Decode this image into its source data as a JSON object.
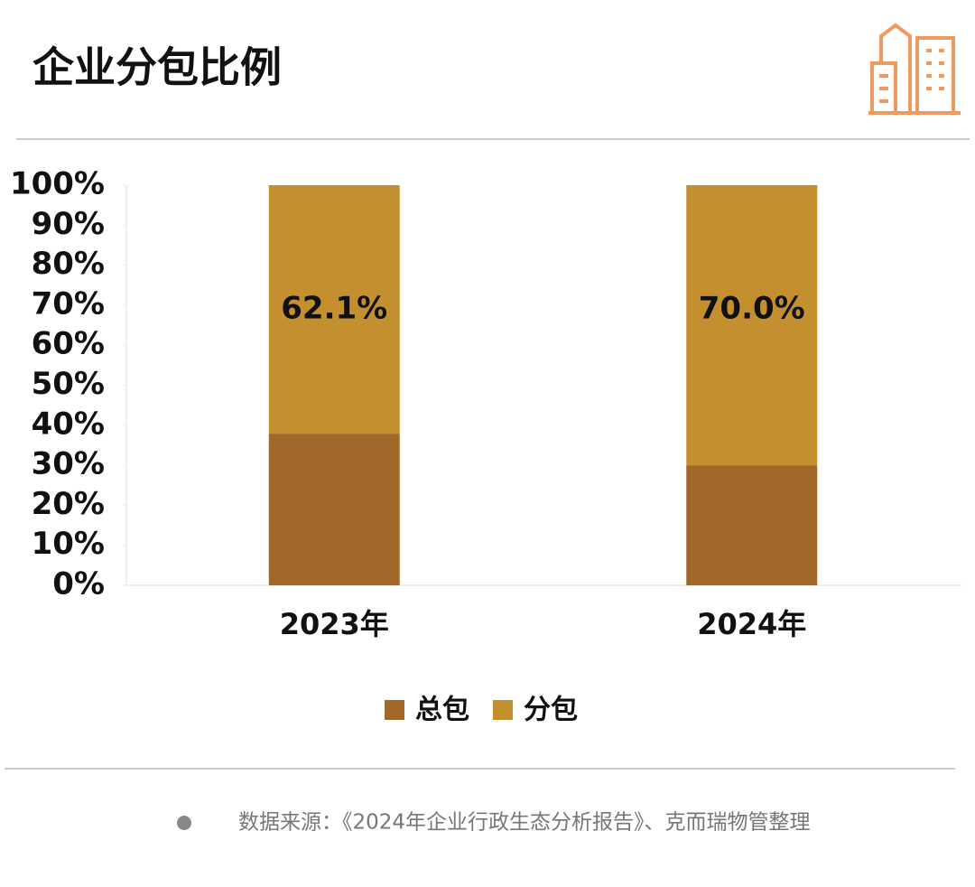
{
  "chart_data": {
    "type": "stacked_bar",
    "title": "企业分包比例",
    "categories": [
      "2023年",
      "2024年"
    ],
    "series": [
      {
        "name": "总包",
        "color": "#a0692a",
        "values": [
          37.9,
          30.0
        ]
      },
      {
        "name": "分包",
        "color": "#c4902f",
        "values": [
          62.1,
          70.0
        ],
        "value_labels": [
          "62.1%",
          "70.0%"
        ]
      }
    ],
    "ylim": [
      0,
      100
    ],
    "yticks": [
      {
        "value": 0,
        "label": "0%"
      },
      {
        "value": 10,
        "label": "10%"
      },
      {
        "value": 20,
        "label": "20%"
      },
      {
        "value": 30,
        "label": "30%"
      },
      {
        "value": 40,
        "label": "40%"
      },
      {
        "value": 50,
        "label": "50%"
      },
      {
        "value": 60,
        "label": "60%"
      },
      {
        "value": 70,
        "label": "70%"
      },
      {
        "value": 80,
        "label": "80%"
      },
      {
        "value": 90,
        "label": "90%"
      },
      {
        "value": 100,
        "label": "100%"
      }
    ],
    "grid": false,
    "legend": "bottom",
    "source": "数据来源：《2024年企业行政生态分析报告》、克而瑞物管整理"
  }
}
